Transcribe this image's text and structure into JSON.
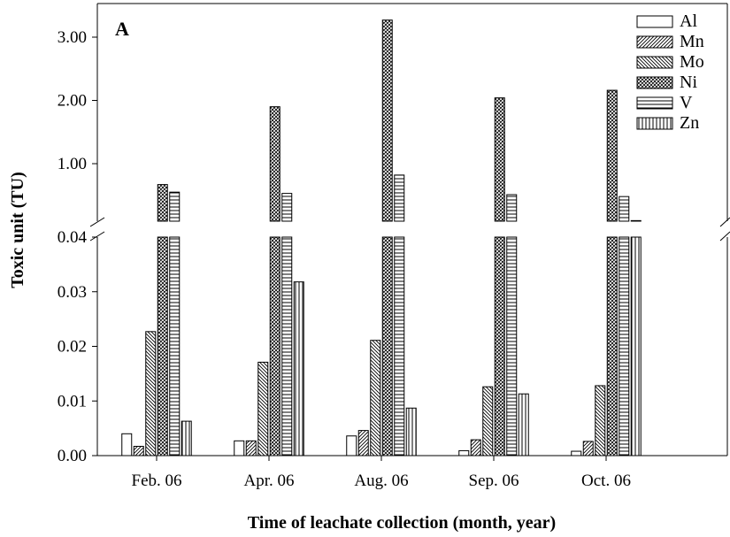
{
  "chart_data": {
    "type": "bar",
    "panel_label": "A",
    "xlabel": "Time of leachate collection (month, year)",
    "ylabel": "Toxic unit (TU)",
    "categories": [
      "Feb. 06",
      "Apr. 06",
      "Aug. 06",
      "Sep. 06",
      "Oct. 06"
    ],
    "axis_break": true,
    "lower_segment": {
      "ylim": [
        0,
        0.04
      ],
      "ticks": [
        "0.00",
        "0.01",
        "0.02",
        "0.03",
        "0.04"
      ]
    },
    "upper_segment": {
      "ylim": [
        0.05,
        3.5
      ],
      "ticks": [
        "1.00",
        "2.00",
        "3.00"
      ]
    },
    "legend_position": "top-right",
    "series": [
      {
        "name": "Al",
        "pattern": "empty",
        "values": [
          0.004,
          0.0027,
          0.0036,
          0.0009,
          0.0008
        ]
      },
      {
        "name": "Mn",
        "pattern": "forward-hatch",
        "values": [
          0.0017,
          0.0027,
          0.0046,
          0.0029,
          0.0026
        ]
      },
      {
        "name": "Mo",
        "pattern": "back-hatch",
        "values": [
          0.0227,
          0.0171,
          0.0211,
          0.0126,
          0.0128
        ]
      },
      {
        "name": "Ni",
        "pattern": "crosshatch",
        "values": [
          0.67,
          1.9,
          3.27,
          2.04,
          2.16
        ]
      },
      {
        "name": "V",
        "pattern": "horizontal",
        "values": [
          0.55,
          0.53,
          0.82,
          0.51,
          0.48
        ]
      },
      {
        "name": "Zn",
        "pattern": "vertical",
        "values": [
          0.0063,
          0.0318,
          0.0087,
          0.0113,
          0.1
        ]
      }
    ]
  }
}
